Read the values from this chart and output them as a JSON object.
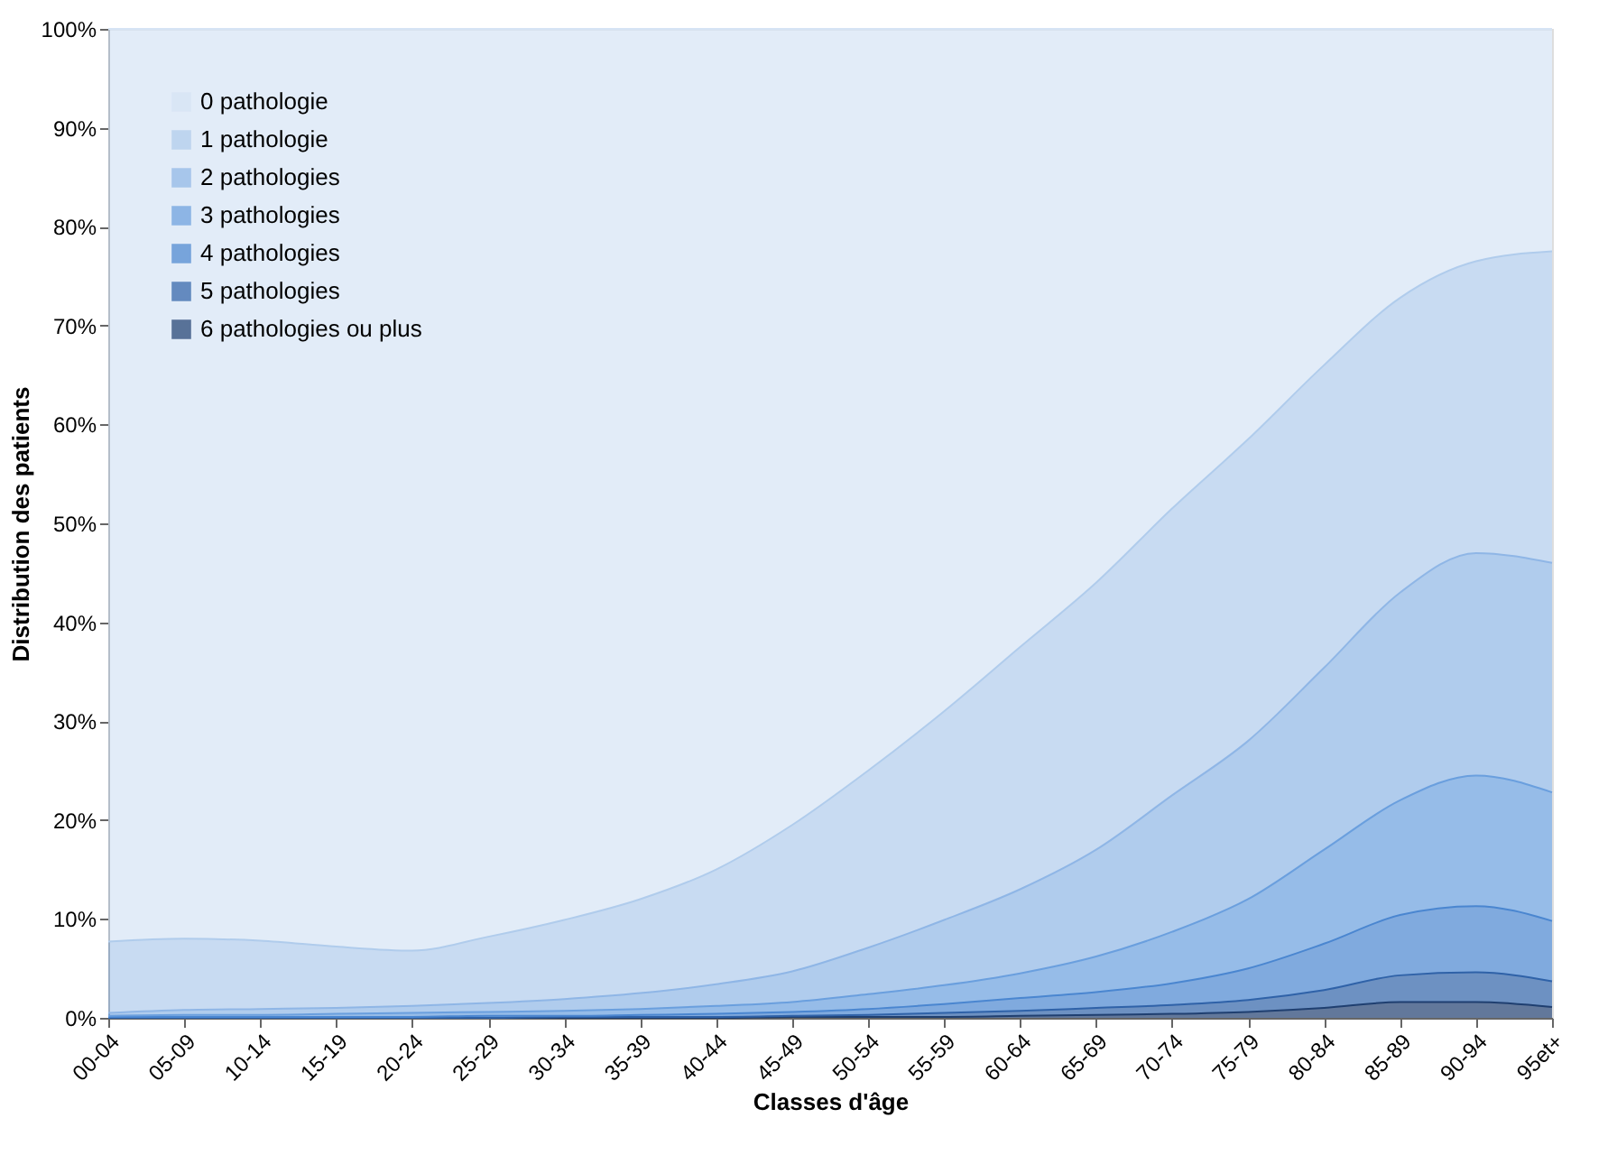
{
  "chart_data": {
    "type": "area",
    "stacked": true,
    "xlabel": "Classes d'âge",
    "ylabel": "Distribution des patients",
    "categories": [
      "00-04",
      "05-09",
      "10-14",
      "15-19",
      "20-24",
      "25-29",
      "30-34",
      "35-39",
      "40-44",
      "45-49",
      "50-54",
      "55-59",
      "60-64",
      "65-69",
      "70-74",
      "75-79",
      "80-84",
      "85-89",
      "90-94",
      "95et+"
    ],
    "series": [
      {
        "name": "6 pathologies ou plus",
        "color": "#1f3f70",
        "values": [
          0,
          0,
          0,
          0,
          0,
          0,
          0,
          0,
          0,
          0.1,
          0.1,
          0.1,
          0.2,
          0.3,
          0.4,
          0.6,
          1.0,
          1.6,
          1.6,
          1.1
        ]
      },
      {
        "name": "5 pathologies",
        "color": "#2f62a8",
        "values": [
          0,
          0,
          0,
          0,
          0,
          0,
          0.1,
          0.1,
          0.1,
          0.1,
          0.2,
          0.4,
          0.5,
          0.7,
          0.9,
          1.2,
          1.8,
          2.7,
          3.0,
          2.6
        ]
      },
      {
        "name": "4 pathologies",
        "color": "#4a86d0",
        "values": [
          0.1,
          0.1,
          0.1,
          0.1,
          0.1,
          0.2,
          0.1,
          0.2,
          0.3,
          0.4,
          0.6,
          0.9,
          1.3,
          1.6,
          2.2,
          3.2,
          4.7,
          6.1,
          6.7,
          6.1
        ]
      },
      {
        "name": "3 pathologies",
        "color": "#6a9fde",
        "values": [
          0.1,
          0.2,
          0.2,
          0.3,
          0.4,
          0.4,
          0.5,
          0.6,
          0.8,
          1.0,
          1.5,
          1.9,
          2.5,
          3.6,
          5.2,
          7.0,
          9.5,
          11.6,
          13.2,
          13.0
        ]
      },
      {
        "name": "2 pathologies",
        "color": "#8fb6e6",
        "values": [
          0.3,
          0.5,
          0.6,
          0.6,
          0.7,
          0.9,
          1.2,
          1.6,
          2.2,
          3.1,
          4.7,
          6.6,
          8.5,
          10.8,
          13.8,
          16.0,
          18.4,
          21.0,
          22.5,
          23.2
        ]
      },
      {
        "name": "1 pathologie",
        "color": "#b0ccec",
        "values": [
          7.2,
          7.2,
          6.9,
          6.2,
          5.6,
          6.7,
          8.0,
          9.5,
          11.6,
          14.8,
          17.9,
          21.1,
          24.5,
          27.0,
          29.0,
          30.5,
          30.6,
          29.8,
          29.5,
          31.5
        ]
      },
      {
        "name": "0 pathologie",
        "color": "#d6e4f5",
        "values": [
          92.3,
          92.0,
          92.2,
          92.8,
          93.2,
          91.8,
          90.1,
          88.0,
          85.0,
          80.5,
          75,
          69,
          62.5,
          56,
          48.5,
          41.5,
          34,
          27.2,
          23.5,
          22.5
        ]
      }
    ],
    "ylim": [
      0,
      100
    ],
    "yticks": [
      {
        "value": 0,
        "label": "0%"
      },
      {
        "value": 10,
        "label": "10%"
      },
      {
        "value": 20,
        "label": "20%"
      },
      {
        "value": 30,
        "label": "30%"
      },
      {
        "value": 40,
        "label": "40%"
      },
      {
        "value": 50,
        "label": "50%"
      },
      {
        "value": 60,
        "label": "60%"
      },
      {
        "value": 70,
        "label": "70%"
      },
      {
        "value": 80,
        "label": "80%"
      },
      {
        "value": 90,
        "label": "90%"
      },
      {
        "value": 100,
        "label": "100%"
      }
    ],
    "grid": false,
    "legend": "top left"
  }
}
